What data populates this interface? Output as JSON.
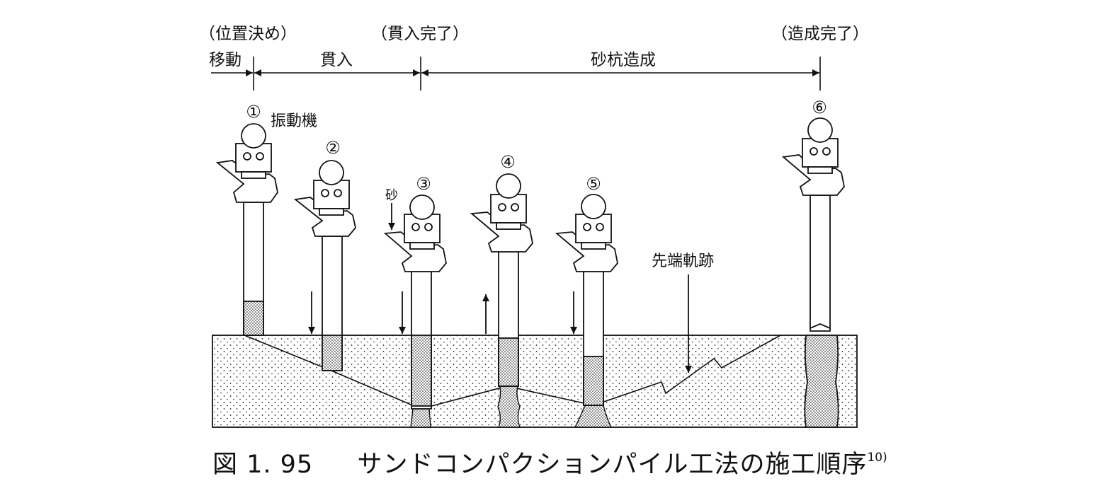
{
  "timeline": {
    "stage_labels": [
      "移動",
      "貫入",
      "砂杭造成"
    ],
    "milestones": [
      "（位置決め）",
      "（貫入完了）",
      "（造成完了）"
    ]
  },
  "steps": [
    "①",
    "②",
    "③",
    "④",
    "⑤",
    "⑥"
  ],
  "annotations": {
    "vibrator": "振動機",
    "sand": "砂",
    "tip_trajectory": "先端軌跡"
  },
  "caption": {
    "figure_number": "図 1. 95",
    "title": "サンドコンパクションパイル工法の施工順序",
    "reference": "10)"
  },
  "colors": {
    "ink": "#111111",
    "background": "#ffffff"
  }
}
